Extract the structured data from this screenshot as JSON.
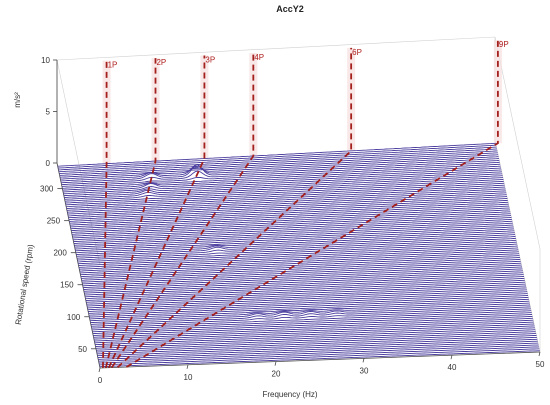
{
  "chart_data": {
    "type": "waterfall",
    "title": "AccY2",
    "xlabel": "Frequency (Hz)",
    "ylabel": "Rotational speed (rpm)",
    "zlabel": "m/s²",
    "xlim": [
      0,
      50
    ],
    "ylim": [
      20,
      340
    ],
    "zlim": [
      0,
      10
    ],
    "x_ticks": [
      "0",
      "10",
      "20",
      "30",
      "40",
      "50"
    ],
    "y_ticks": [
      "50",
      "100",
      "150",
      "200",
      "250",
      "300"
    ],
    "z_ticks": [
      "0",
      "5",
      "10"
    ],
    "grid": false,
    "speed_traces": {
      "min_rpm": 22,
      "max_rpm": 335,
      "count": 110,
      "line_color": "#4a3e9e"
    },
    "order_lines": [
      {
        "label": "1P",
        "order": 1
      },
      {
        "label": "2P",
        "order": 2
      },
      {
        "label": "3P",
        "order": 3
      },
      {
        "label": "4P",
        "order": 4
      },
      {
        "label": "6P",
        "order": 6
      },
      {
        "label": "9P",
        "order": 9
      }
    ],
    "order_line_color": "#a3201d",
    "peaks": [
      {
        "rpm": 310,
        "freq": 10.3,
        "amp": 0.5
      },
      {
        "rpm": 310,
        "freq": 15.5,
        "amp": 1.2
      },
      {
        "rpm": 295,
        "freq": 10.0,
        "amp": 0.4
      },
      {
        "rpm": 285,
        "freq": 9.5,
        "amp": 0.35
      },
      {
        "rpm": 195,
        "freq": 16.0,
        "amp": 0.3
      },
      {
        "rpm": 90,
        "freq": 19.0,
        "amp": 0.25
      },
      {
        "rpm": 90,
        "freq": 22.0,
        "amp": 0.3
      },
      {
        "rpm": 90,
        "freq": 25.0,
        "amp": 0.25
      },
      {
        "rpm": 90,
        "freq": 28.0,
        "amp": 0.2
      }
    ]
  }
}
